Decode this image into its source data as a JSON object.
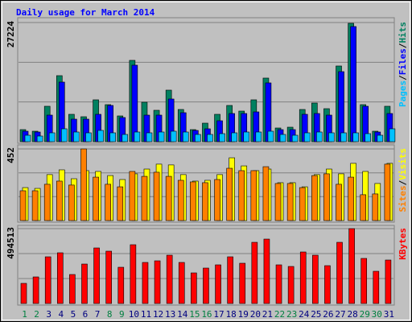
{
  "header": {
    "title": "Daily usage for March 2014"
  },
  "x_axis": {
    "categories": [
      "1",
      "2",
      "3",
      "4",
      "5",
      "6",
      "7",
      "8",
      "9",
      "10",
      "11",
      "12",
      "13",
      "14",
      "15",
      "16",
      "17",
      "18",
      "19",
      "20",
      "21",
      "22",
      "23",
      "24",
      "25",
      "26",
      "27",
      "28",
      "29",
      "30",
      "31"
    ],
    "category_colors": [
      "#008040",
      "#008040",
      "#000080",
      "#000080",
      "#000080",
      "#000080",
      "#000080",
      "#008040",
      "#008040",
      "#000080",
      "#000080",
      "#000080",
      "#000080",
      "#000080",
      "#008040",
      "#008040",
      "#000080",
      "#000080",
      "#000080",
      "#000080",
      "#000080",
      "#008040",
      "#008040",
      "#000080",
      "#000080",
      "#000080",
      "#000080",
      "#000080",
      "#008040",
      "#008040",
      "#000080"
    ]
  },
  "legend_separator": "/",
  "chart_data": [
    {
      "type": "bar",
      "ylim": [
        0,
        27224
      ],
      "yticks": [
        27224
      ],
      "grid_lines": [
        9075,
        18149
      ],
      "series": [
        {
          "name": "Hits",
          "color": "#008060",
          "values": [
            2760,
            2392,
            8096,
            15088,
            6256,
            5704,
            9568,
            8464,
            5888,
            18584,
            9016,
            7176,
            11776,
            7360,
            2760,
            4232,
            6256,
            8280,
            6992,
            9568,
            14536,
            3128,
            3312,
            7360,
            8832,
            7544,
            17296,
            27048,
            8464,
            2392,
            8096
          ]
        },
        {
          "name": "Files",
          "color": "#0000ff",
          "values": [
            2392,
            2208,
            6072,
            13616,
            5152,
            5152,
            6256,
            8280,
            5520,
            17480,
            6072,
            6072,
            9752,
            6624,
            2576,
            2944,
            4784,
            6440,
            6440,
            6808,
            13432,
            2760,
            2760,
            6256,
            6440,
            6072,
            16008,
            26312,
            8096,
            2208,
            6440
          ]
        },
        {
          "name": "Pages",
          "color": "#00c0ff",
          "values": [
            1472,
            1288,
            2024,
            2944,
            2208,
            2024,
            2576,
            2024,
            1656,
            2208,
            2024,
            2208,
            2392,
            2208,
            1656,
            1656,
            1840,
            2024,
            2208,
            2208,
            2392,
            1656,
            1472,
            2024,
            2208,
            2024,
            2024,
            2024,
            1840,
            1472,
            2944
          ]
        }
      ]
    },
    {
      "type": "bar",
      "ylim": [
        0,
        452
      ],
      "yticks": [
        452
      ],
      "grid_lines": [
        151,
        301
      ],
      "series": [
        {
          "name": "Visits",
          "color": "#ffff00",
          "values": [
            208,
            203,
            290,
            320,
            264,
            315,
            310,
            284,
            259,
            295,
            325,
            356,
            351,
            290,
            249,
            254,
            290,
            396,
            345,
            315,
            325,
            239,
            239,
            213,
            290,
            325,
            295,
            361,
            310,
            234,
            361
          ]
        },
        {
          "name": "Sites",
          "color": "#ff8000",
          "values": [
            188,
            188,
            229,
            249,
            224,
            452,
            274,
            229,
            213,
            310,
            279,
            305,
            279,
            254,
            244,
            239,
            259,
            330,
            315,
            315,
            340,
            234,
            234,
            208,
            284,
            295,
            229,
            274,
            163,
            168,
            356
          ]
        }
      ]
    },
    {
      "type": "bar",
      "ylim": [
        0,
        494513
      ],
      "yticks": [
        494513
      ],
      "grid_lines": [
        164838,
        329675
      ],
      "series": [
        {
          "name": "KBytes",
          "color": "#ff0000",
          "values": [
            132925,
            175461,
            308386,
            334971,
            191412,
            260533,
            366873,
            345605,
            239265,
            388141,
            271167,
            281801,
            319020,
            271167,
            202046,
            233948,
            255216,
            308386,
            265850,
            404092,
            425360,
            255216,
            244582,
            340288,
            319020,
            249899,
            404092,
            494513,
            297752,
            212680,
            287118
          ]
        }
      ]
    }
  ]
}
